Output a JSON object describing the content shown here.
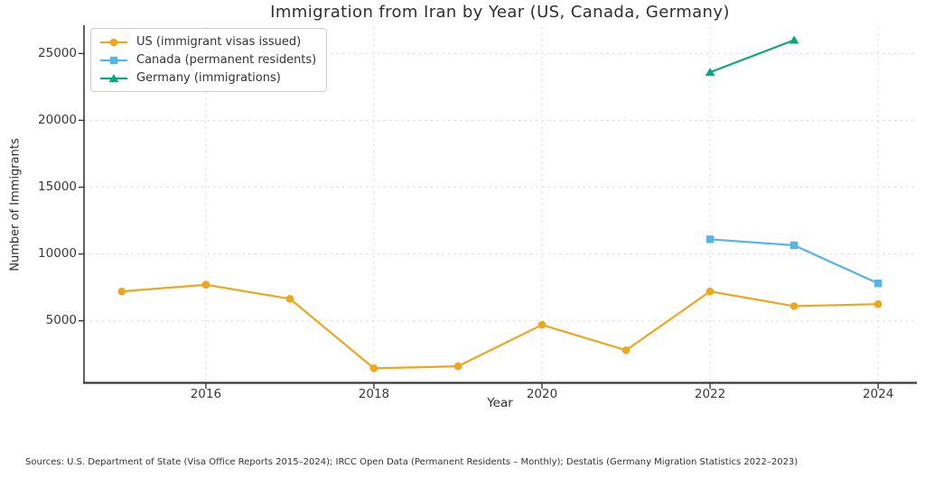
{
  "chart_data": {
    "type": "line",
    "title": "Immigration from Iran by Year (US, Canada, Germany)",
    "xlabel": "Year",
    "ylabel": "Number of Immigrants",
    "x_ticks": [
      2016,
      2018,
      2020,
      2022,
      2024
    ],
    "y_ticks": [
      5000,
      10000,
      15000,
      20000,
      25000
    ],
    "xlim": [
      2014.55,
      2024.45
    ],
    "ylim": [
      360,
      26980
    ],
    "grid": true,
    "legend_position": "upper left",
    "series": [
      {
        "name": "US (immigrant visas issued)",
        "color": "#EFA51C",
        "marker": "circle",
        "x": [
          2015,
          2016,
          2017,
          2018,
          2019,
          2020,
          2021,
          2022,
          2023,
          2024
        ],
        "values": [
          7200,
          7700,
          6650,
          1450,
          1600,
          4700,
          2800,
          7200,
          6100,
          6250
        ]
      },
      {
        "name": "Canada (permanent residents)",
        "color": "#56B4E9",
        "marker": "square",
        "x": [
          2022,
          2023,
          2024
        ],
        "values": [
          11100,
          10650,
          7800
        ]
      },
      {
        "name": "Germany (immigrations)",
        "color": "#0BA77C",
        "marker": "triangle",
        "x": [
          2022,
          2023
        ],
        "values": [
          23600,
          26000
        ]
      }
    ]
  },
  "footer": {
    "sources": "Sources: U.S. Department of State (Visa Office Reports 2015–2024); IRCC Open Data (Permanent Residents – Monthly); Destatis (Germany Migration Statistics 2022–2023)"
  }
}
